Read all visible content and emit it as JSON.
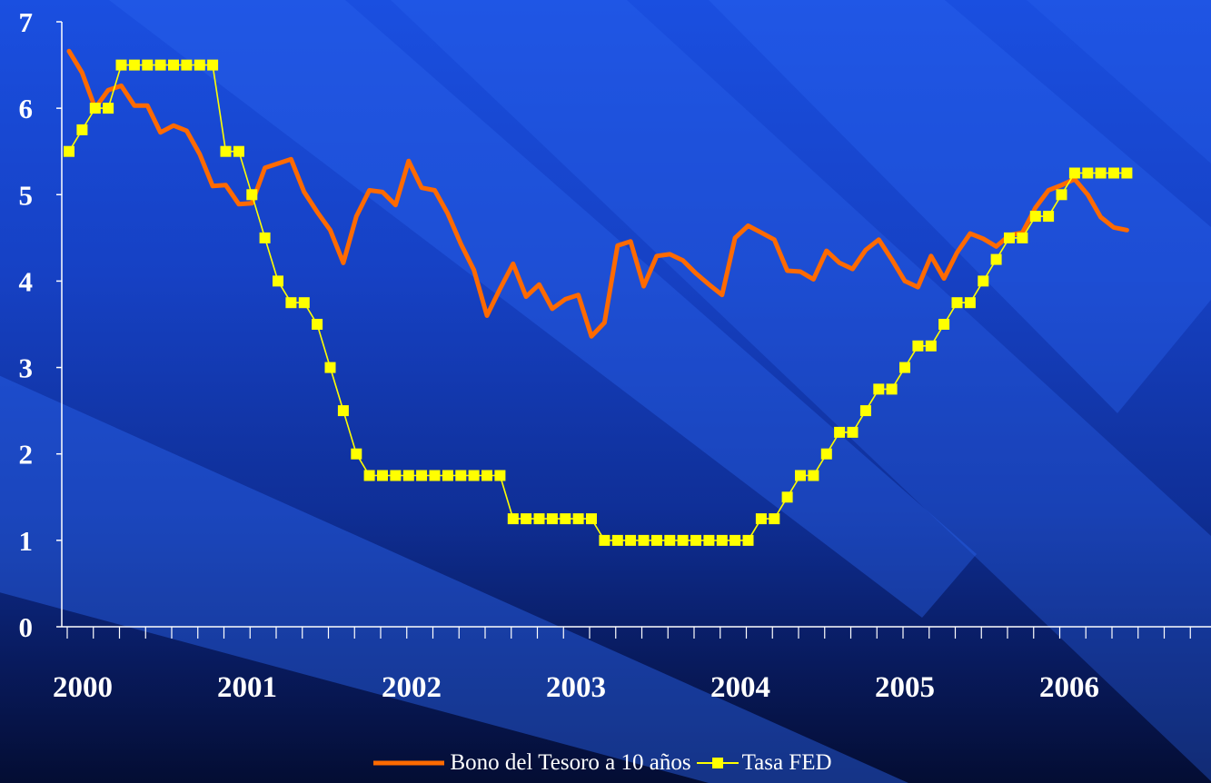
{
  "chart_data": {
    "type": "line",
    "title": "",
    "xlabel": "",
    "ylabel": "",
    "ylim": [
      0,
      7
    ],
    "yticks": [
      "0",
      "1",
      "2",
      "3",
      "4",
      "5",
      "6",
      "7"
    ],
    "year_labels": [
      "2000",
      "2001",
      "2002",
      "2003",
      "2004",
      "2005",
      "2006"
    ],
    "grid": false,
    "legend_position": "bottom-center",
    "series": [
      {
        "name": "Bono del Tesoro a 10 años",
        "color": "#ff6a00",
        "marker": "none",
        "values": [
          6.66,
          6.41,
          6.0,
          6.21,
          6.26,
          6.03,
          6.03,
          5.72,
          5.8,
          5.74,
          5.47,
          5.1,
          5.11,
          4.89,
          4.9,
          5.31,
          5.36,
          5.41,
          5.03,
          4.8,
          4.59,
          4.21,
          4.75,
          5.05,
          5.03,
          4.88,
          5.39,
          5.08,
          5.05,
          4.78,
          4.43,
          4.13,
          3.6,
          3.91,
          4.2,
          3.82,
          3.96,
          3.68,
          3.79,
          3.84,
          3.36,
          3.52,
          4.41,
          4.46,
          3.94,
          4.29,
          4.31,
          4.24,
          4.09,
          3.96,
          3.84,
          4.5,
          4.64,
          4.56,
          4.48,
          4.12,
          4.11,
          4.02,
          4.35,
          4.21,
          4.14,
          4.36,
          4.48,
          4.25,
          4.0,
          3.93,
          4.29,
          4.03,
          4.33,
          4.55,
          4.49,
          4.4,
          4.53,
          4.56,
          4.85,
          5.05,
          5.11,
          5.18,
          5.0,
          4.74,
          4.62,
          4.59
        ]
      },
      {
        "name": "Tasa FED",
        "color": "#ffff00",
        "marker": "square",
        "values": [
          5.5,
          5.75,
          6.0,
          6.0,
          6.5,
          6.5,
          6.5,
          6.5,
          6.5,
          6.5,
          6.5,
          6.5,
          5.5,
          5.5,
          5.0,
          4.5,
          4.0,
          3.75,
          3.75,
          3.5,
          3.0,
          2.5,
          2.0,
          1.75,
          1.75,
          1.75,
          1.75,
          1.75,
          1.75,
          1.75,
          1.75,
          1.75,
          1.75,
          1.75,
          1.25,
          1.25,
          1.25,
          1.25,
          1.25,
          1.25,
          1.25,
          1.0,
          1.0,
          1.0,
          1.0,
          1.0,
          1.0,
          1.0,
          1.0,
          1.0,
          1.0,
          1.0,
          1.0,
          1.25,
          1.25,
          1.5,
          1.75,
          1.75,
          2.0,
          2.25,
          2.25,
          2.5,
          2.75,
          2.75,
          3.0,
          3.25,
          3.25,
          3.5,
          3.75,
          3.75,
          4.0,
          4.25,
          4.5,
          4.5,
          4.75,
          4.75,
          5.0,
          5.25,
          5.25,
          5.25,
          5.25,
          5.25
        ]
      }
    ]
  }
}
